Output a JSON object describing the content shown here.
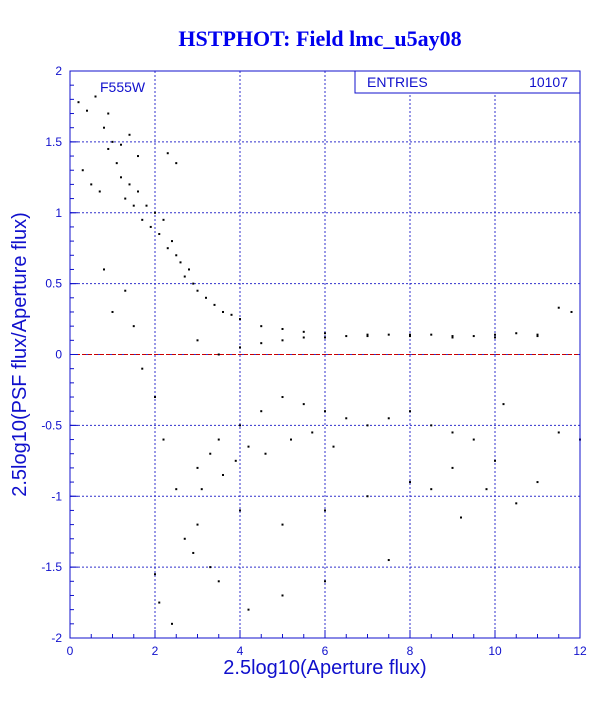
{
  "chart_data": {
    "type": "scatter",
    "title": "HSTPHOT: Field lmc_u5ay08",
    "xlabel": "2.5log10(Aperture flux)",
    "ylabel": "2.5log10(PSF flux/Aperture flux)",
    "xlim": [
      0,
      12
    ],
    "ylim": [
      -2,
      2
    ],
    "x_ticks": [
      "0",
      "2",
      "4",
      "6",
      "8",
      "10",
      "12"
    ],
    "y_ticks": [
      "-2",
      "-1.5",
      "-1",
      "-0.5",
      "0",
      "0.5",
      "1",
      "1.5",
      "2"
    ],
    "grid": true,
    "filter_label": "F555W",
    "stats": {
      "label": "ENTRIES",
      "value": "10107"
    },
    "reference_line": {
      "y": 0,
      "color": "#cc0000"
    },
    "colors": {
      "axis": "#1010cc",
      "grid": "#3030cc",
      "title": "#0000ee",
      "points": "#000000"
    },
    "series": [
      {
        "points": [
          [
            0.2,
            1.78
          ],
          [
            0.4,
            1.72
          ],
          [
            0.6,
            1.82
          ],
          [
            0.8,
            1.6
          ],
          [
            0.9,
            1.45
          ],
          [
            1.0,
            1.5
          ],
          [
            1.1,
            1.35
          ],
          [
            0.3,
            1.3
          ],
          [
            0.5,
            1.2
          ],
          [
            0.7,
            1.15
          ],
          [
            1.2,
            1.25
          ],
          [
            1.3,
            1.1
          ],
          [
            1.4,
            1.2
          ],
          [
            1.5,
            1.05
          ],
          [
            1.6,
            1.15
          ],
          [
            1.7,
            0.95
          ],
          [
            1.8,
            1.05
          ],
          [
            1.9,
            0.9
          ],
          [
            2.0,
            1.0
          ],
          [
            2.1,
            0.85
          ],
          [
            2.2,
            0.95
          ],
          [
            2.3,
            0.75
          ],
          [
            2.4,
            0.8
          ],
          [
            2.5,
            0.7
          ],
          [
            2.6,
            0.65
          ],
          [
            2.7,
            0.55
          ],
          [
            2.8,
            0.6
          ],
          [
            2.9,
            0.5
          ],
          [
            3.0,
            0.45
          ],
          [
            3.2,
            0.4
          ],
          [
            3.4,
            0.35
          ],
          [
            3.6,
            0.3
          ],
          [
            3.8,
            0.28
          ],
          [
            4.0,
            0.25
          ],
          [
            4.5,
            0.2
          ],
          [
            5.0,
            0.18
          ],
          [
            5.5,
            0.16
          ],
          [
            6.0,
            0.15
          ],
          [
            7.0,
            0.14
          ],
          [
            8.0,
            0.13
          ],
          [
            9.0,
            0.12
          ],
          [
            10.0,
            0.12
          ],
          [
            11.0,
            0.13
          ],
          [
            11.5,
            0.33
          ],
          [
            11.8,
            0.3
          ],
          [
            1.4,
            1.55
          ],
          [
            1.6,
            1.4
          ],
          [
            1.2,
            1.48
          ],
          [
            0.9,
            1.7
          ],
          [
            2.3,
            1.42
          ],
          [
            2.5,
            1.35
          ],
          [
            2.1,
            -1.75
          ],
          [
            2.0,
            -1.55
          ],
          [
            2.4,
            -1.9
          ],
          [
            3.3,
            -1.5
          ],
          [
            3.5,
            -1.6
          ],
          [
            4.2,
            -1.8
          ],
          [
            5.0,
            -1.7
          ],
          [
            6.0,
            -1.6
          ],
          [
            7.5,
            -1.45
          ],
          [
            3.0,
            -1.2
          ],
          [
            4.0,
            -1.1
          ],
          [
            5.0,
            -1.2
          ],
          [
            6.0,
            -1.1
          ],
          [
            7.0,
            -1.0
          ],
          [
            8.0,
            -0.9
          ],
          [
            9.0,
            -0.8
          ],
          [
            10.0,
            -0.75
          ],
          [
            10.5,
            -1.05
          ],
          [
            11.0,
            -0.9
          ],
          [
            11.5,
            -0.55
          ],
          [
            12.0,
            -0.6
          ],
          [
            8.5,
            -0.95
          ],
          [
            9.5,
            -0.6
          ],
          [
            9.2,
            -1.15
          ],
          [
            9.8,
            -0.95
          ],
          [
            10.2,
            -0.35
          ],
          [
            3.0,
            -0.8
          ],
          [
            3.5,
            -0.6
          ],
          [
            4.0,
            -0.5
          ],
          [
            4.5,
            -0.4
          ],
          [
            5.0,
            -0.3
          ],
          [
            5.5,
            -0.35
          ],
          [
            6.0,
            -0.4
          ],
          [
            6.5,
            -0.45
          ],
          [
            7.0,
            -0.5
          ],
          [
            7.5,
            -0.45
          ],
          [
            8.0,
            -0.4
          ],
          [
            8.5,
            -0.5
          ],
          [
            9.0,
            -0.55
          ],
          [
            3.0,
            0.1
          ],
          [
            3.5,
            0.0
          ],
          [
            4.0,
            0.05
          ],
          [
            4.5,
            0.08
          ],
          [
            5.0,
            0.1
          ],
          [
            5.5,
            0.12
          ],
          [
            6.0,
            0.12
          ],
          [
            6.5,
            0.13
          ],
          [
            7.0,
            0.13
          ],
          [
            7.5,
            0.14
          ],
          [
            8.0,
            0.14
          ],
          [
            8.5,
            0.14
          ],
          [
            9.0,
            0.13
          ],
          [
            9.5,
            0.13
          ],
          [
            10.0,
            0.14
          ],
          [
            10.5,
            0.15
          ],
          [
            11.0,
            0.14
          ],
          [
            1.3,
            0.45
          ],
          [
            1.0,
            0.3
          ],
          [
            0.8,
            0.6
          ],
          [
            1.5,
            0.2
          ],
          [
            1.7,
            -0.1
          ],
          [
            2.0,
            -0.3
          ],
          [
            2.2,
            -0.6
          ],
          [
            2.5,
            -0.95
          ],
          [
            2.7,
            -1.3
          ],
          [
            2.9,
            -1.4
          ],
          [
            3.1,
            -0.95
          ],
          [
            3.3,
            -0.7
          ],
          [
            3.6,
            -0.85
          ],
          [
            3.9,
            -0.75
          ],
          [
            4.2,
            -0.65
          ],
          [
            4.6,
            -0.7
          ],
          [
            5.2,
            -0.6
          ],
          [
            5.7,
            -0.55
          ],
          [
            6.2,
            -0.65
          ]
        ]
      }
    ]
  }
}
